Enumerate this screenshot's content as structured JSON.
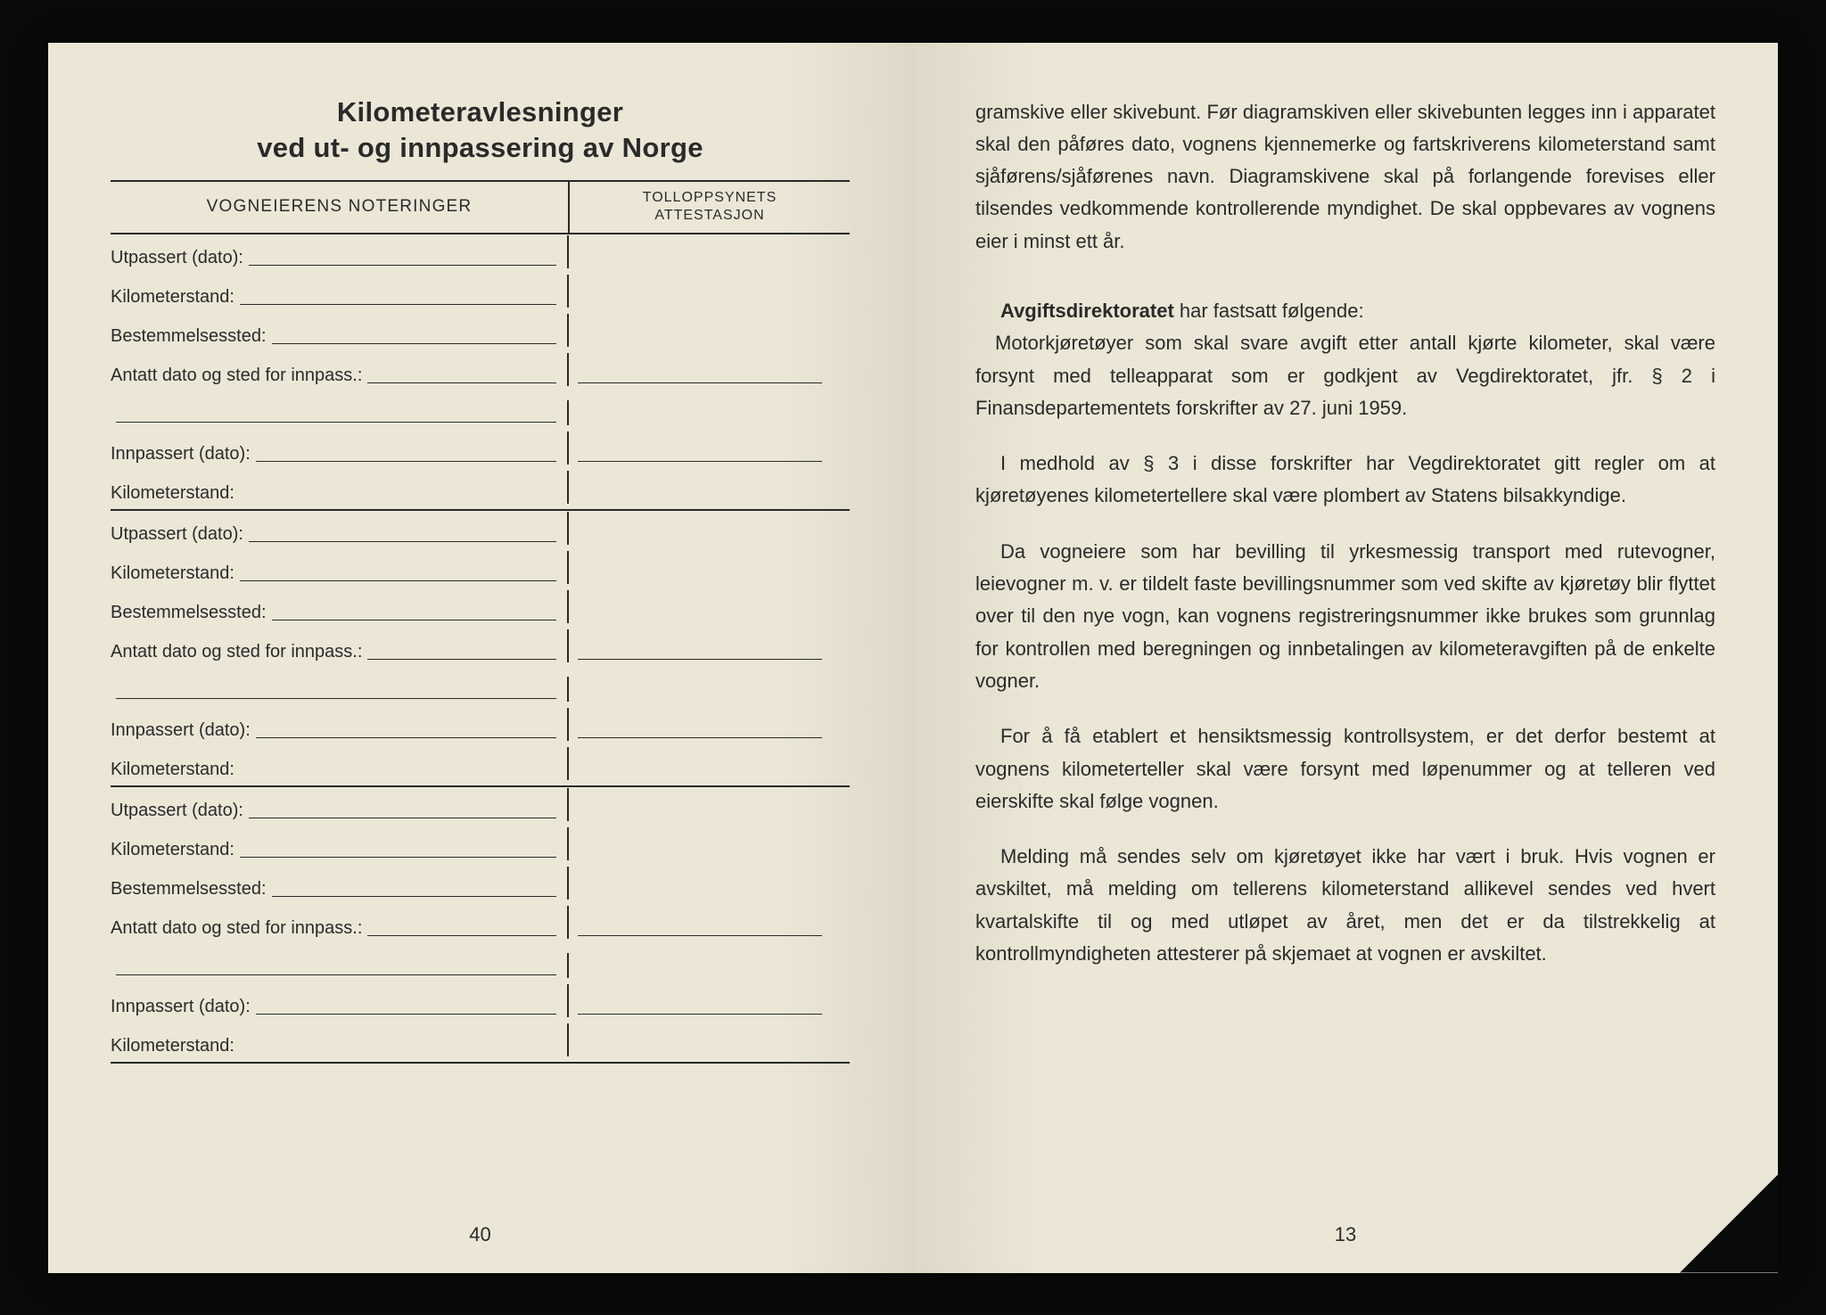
{
  "left_page": {
    "title_line1": "Kilometeravlesninger",
    "title_line2": "ved ut- og innpassering av Norge",
    "header_left": "VOGNEIERENS NOTERINGER",
    "header_right_line1": "TOLLOPPSYNETS",
    "header_right_line2": "ATTESTASJON",
    "sections": [
      {
        "rows": [
          {
            "label": "Utpassert (dato):",
            "has_right_line": false
          },
          {
            "label": "Kilometerstand:",
            "has_right_line": false
          },
          {
            "label": "Bestemmelsessted:",
            "has_right_line": false
          },
          {
            "label": "Antatt dato og sted for innpass.:",
            "has_right_line": true
          },
          {
            "label": "",
            "continuation": true,
            "has_right_line": false
          },
          {
            "label": "Innpassert (dato):",
            "has_right_line": true
          },
          {
            "label": "Kilometerstand:",
            "has_right_line": false,
            "no_line": true
          }
        ]
      },
      {
        "rows": [
          {
            "label": "Utpassert (dato):",
            "has_right_line": false
          },
          {
            "label": "Kilometerstand:",
            "has_right_line": false
          },
          {
            "label": "Bestemmelsessted:",
            "has_right_line": false
          },
          {
            "label": "Antatt dato og sted for innpass.:",
            "has_right_line": true
          },
          {
            "label": "",
            "continuation": true,
            "has_right_line": false
          },
          {
            "label": "Innpassert (dato):",
            "has_right_line": true
          },
          {
            "label": "Kilometerstand:",
            "has_right_line": false,
            "no_line": true
          }
        ]
      },
      {
        "rows": [
          {
            "label": "Utpassert (dato):",
            "has_right_line": false
          },
          {
            "label": "Kilometerstand:",
            "has_right_line": false
          },
          {
            "label": "Bestemmelsessted:",
            "has_right_line": false
          },
          {
            "label": "Antatt dato og sted for innpass.:",
            "has_right_line": true
          },
          {
            "label": "",
            "continuation": true,
            "has_right_line": false
          },
          {
            "label": "Innpassert (dato):",
            "has_right_line": true
          },
          {
            "label": "Kilometerstand:",
            "has_right_line": false,
            "no_line": true
          }
        ]
      }
    ],
    "page_number": "40"
  },
  "right_page": {
    "paragraphs": [
      {
        "text": "gramskive eller skivebunt. Før diagramskiven eller skivebunten legges inn i apparatet skal den påføres dato, vognens kjennemerke og fartskriverens kilometerstand samt sjåførens/sjåførenes navn. Diagramskivene skal på forlangende forevises eller tilsendes vedkommende kontrollerende myndighet. De skal oppbevares av vognens eier i minst ett år.",
        "indent": false,
        "first": true
      },
      {
        "text_parts": [
          {
            "bold": true,
            "text": "Avgiftsdirektoratet"
          },
          {
            "bold": false,
            "text": " har fastsatt følgende:"
          }
        ],
        "indent": true,
        "newline_continue": "Motorkjøretøyer som skal svare avgift etter antall kjørte kilometer, skal være forsynt med telleapparat som er godkjent av Vegdirektoratet, jfr. § 2 i Finansdepartementets forskrifter av 27. juni 1959."
      },
      {
        "text": "I medhold av § 3 i disse forskrifter har Vegdirektoratet gitt regler om at kjøretøyenes kilometertellere skal være plombert av Statens bilsakkyndige.",
        "indent": true
      },
      {
        "text": "Da vogneiere som har bevilling til yrkesmessig transport med rutevogner, leievogner m. v. er tildelt faste bevillingsnummer som ved skifte av kjøretøy blir flyttet over til den nye vogn, kan vognens registreringsnummer ikke brukes som grunnlag for kontrollen med beregningen og innbetalingen av kilometeravgiften på de enkelte vogner.",
        "indent": true
      },
      {
        "text": "For å få etablert et hensiktsmessig kontrollsystem, er det derfor bestemt at vognens kilometerteller skal være forsynt med løpenummer og at telleren ved eierskifte skal følge vognen.",
        "indent": true
      },
      {
        "text": "Melding må sendes selv om kjøretøyet ikke har vært i bruk. Hvis vognen er avskiltet, må melding om tellerens kilometerstand allikevel sendes ved hvert kvartalskifte til og med utløpet av året, men det er da tilstrekkelig at kontrollmyndigheten attesterer på skjemaet at vognen er avskiltet.",
        "indent": true
      }
    ],
    "page_number": "13"
  },
  "colors": {
    "paper": "#ebe6d6",
    "text": "#2a2a2a",
    "background": "#0a0a0a"
  }
}
